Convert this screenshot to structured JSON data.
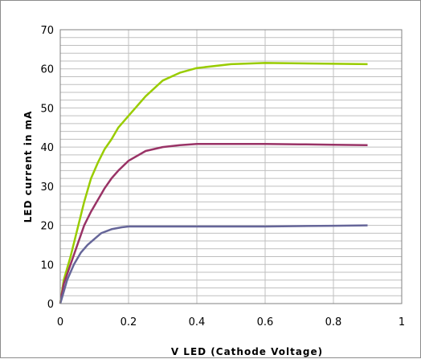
{
  "chart_data": {
    "type": "line",
    "title": "",
    "xlabel": "V LED (Cathode Voltage)",
    "ylabel": "LED current in mA",
    "xlim": [
      0,
      1
    ],
    "ylim": [
      0,
      70
    ],
    "x_ticks": [
      "0",
      "0.2",
      "0.4",
      "0.6",
      "0.8",
      "1"
    ],
    "y_ticks": [
      "0",
      "10",
      "20",
      "30",
      "40",
      "50",
      "60",
      "70"
    ],
    "grid": true,
    "legend": "none",
    "series": [
      {
        "color": "#99cc00",
        "x": [
          0,
          0.01,
          0.03,
          0.05,
          0.07,
          0.09,
          0.11,
          0.13,
          0.15,
          0.17,
          0.2,
          0.25,
          0.3,
          0.35,
          0.4,
          0.5,
          0.6,
          0.7,
          0.8,
          0.9
        ],
        "y": [
          0,
          6,
          12,
          19,
          26,
          32,
          36,
          39.5,
          42,
          45,
          48,
          53,
          57,
          59,
          60.2,
          61.2,
          61.5,
          61.4,
          61.3,
          61.2
        ]
      },
      {
        "color": "#993366",
        "x": [
          0,
          0.01,
          0.03,
          0.05,
          0.07,
          0.09,
          0.11,
          0.13,
          0.15,
          0.17,
          0.2,
          0.25,
          0.3,
          0.35,
          0.4,
          0.5,
          0.6,
          0.7,
          0.8,
          0.9
        ],
        "y": [
          0,
          5,
          10,
          15,
          20,
          23.5,
          26.5,
          29.5,
          32,
          34,
          36.5,
          39,
          40,
          40.5,
          40.8,
          40.8,
          40.8,
          40.7,
          40.6,
          40.5
        ]
      },
      {
        "color": "#666699",
        "x": [
          0,
          0.01,
          0.02,
          0.04,
          0.06,
          0.08,
          0.1,
          0.12,
          0.15,
          0.18,
          0.2,
          0.3,
          0.4,
          0.5,
          0.6,
          0.7,
          0.8,
          0.9
        ],
        "y": [
          0,
          3,
          6,
          10,
          13,
          15,
          16.5,
          18,
          19,
          19.5,
          19.7,
          19.7,
          19.7,
          19.7,
          19.7,
          19.8,
          19.9,
          20
        ]
      }
    ]
  }
}
